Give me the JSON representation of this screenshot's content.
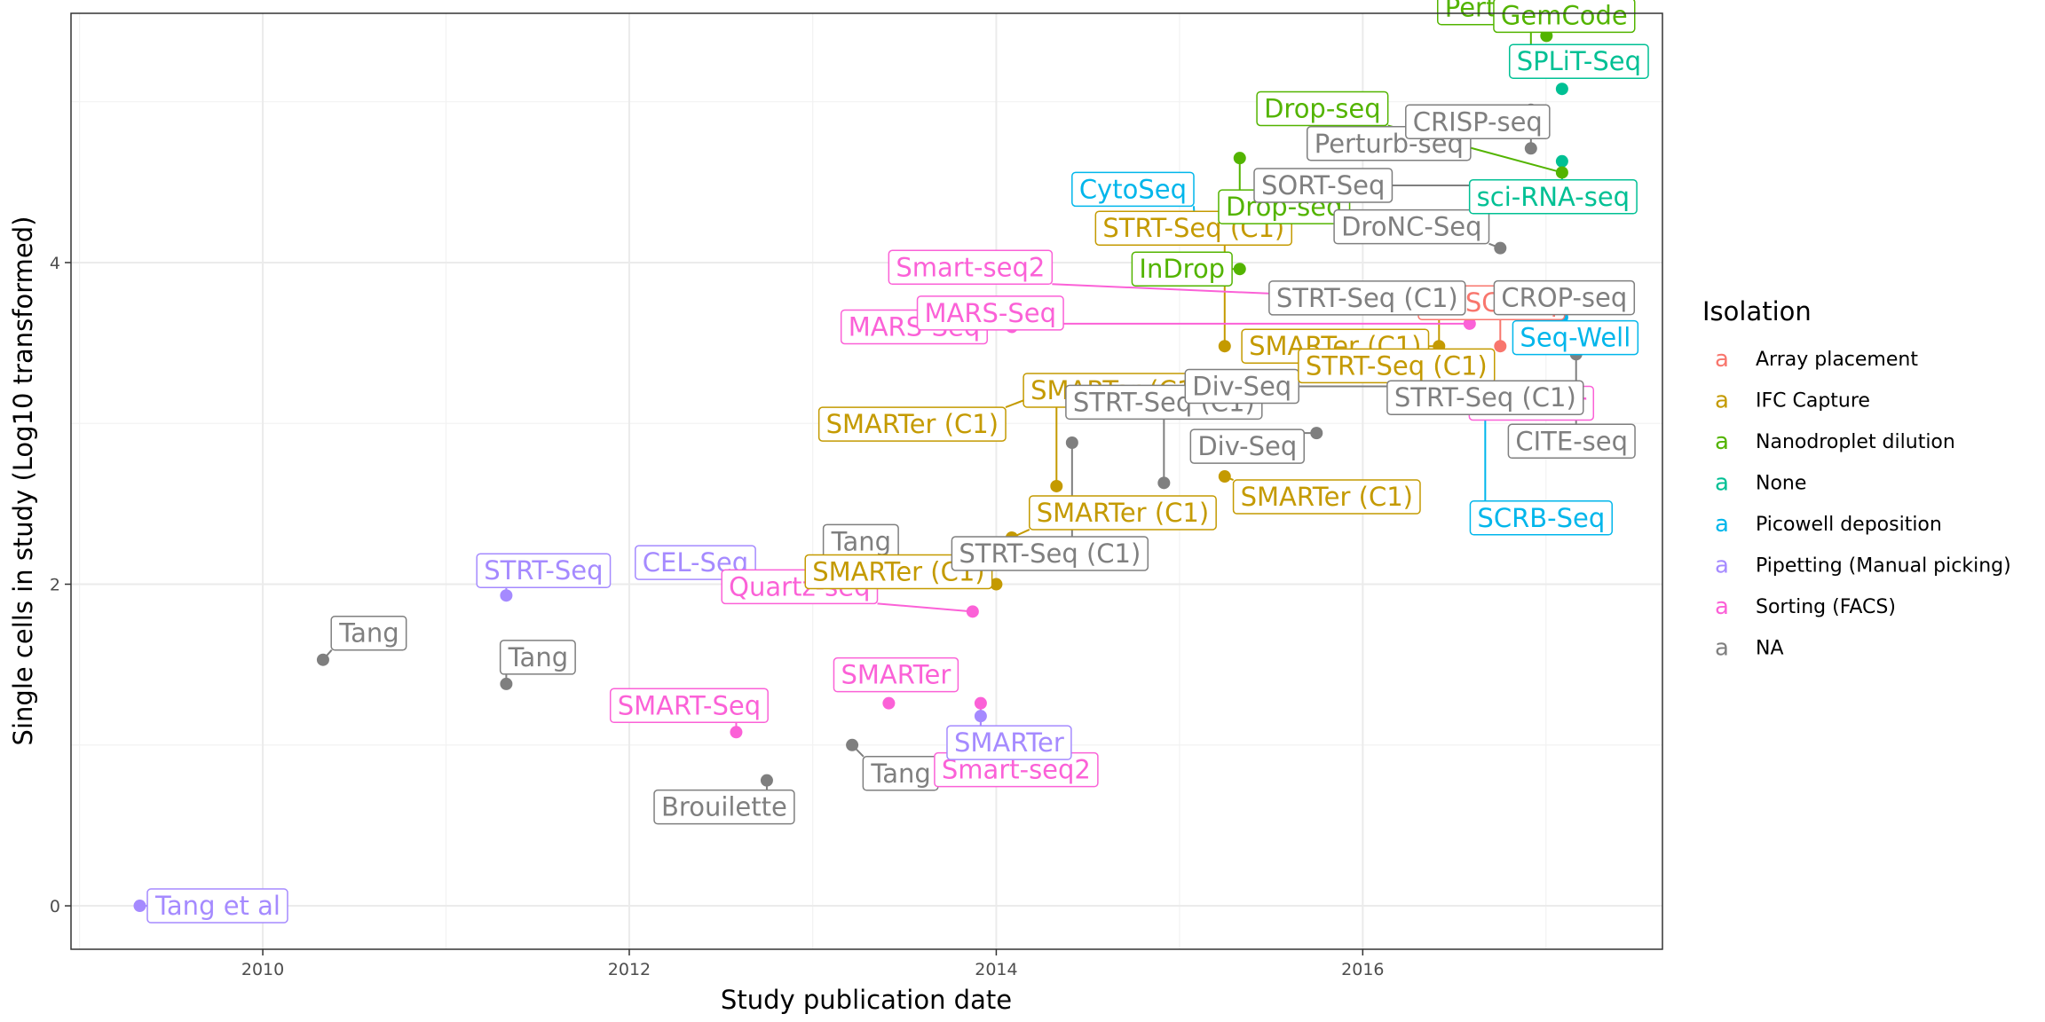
{
  "chart_data": {
    "type": "scatter",
    "xlabel": "Study publication date",
    "ylabel": "Single cells in study (Log10 transformed)",
    "xlim": [
      "2008-12-15",
      "2017-08-20"
    ],
    "ylim": [
      -0.27,
      5.55
    ],
    "x_ticks": [
      {
        "value": "2010-01-01",
        "label": "2010"
      },
      {
        "value": "2012-01-01",
        "label": "2012"
      },
      {
        "value": "2014-01-01",
        "label": "2014"
      },
      {
        "value": "2016-01-01",
        "label": "2016"
      }
    ],
    "y_ticks": [
      0,
      2,
      4
    ],
    "grid": true,
    "legend": {
      "title": "Isolation",
      "position": "right",
      "key_glyph": "a",
      "entries": [
        {
          "name": "Array placement",
          "color": "#F8766D"
        },
        {
          "name": "IFC Capture",
          "color": "#C49A00"
        },
        {
          "name": "Nanodroplet dilution",
          "color": "#53B400"
        },
        {
          "name": "None",
          "color": "#00C094"
        },
        {
          "name": "Picowell deposition",
          "color": "#00B6EB"
        },
        {
          "name": "Pipetting (Manual picking)",
          "color": "#A58AFF"
        },
        {
          "name": "Sorting (FACS)",
          "color": "#FB61D7"
        },
        {
          "name": "NA",
          "color": "#7F7F7F"
        }
      ]
    },
    "points": [
      {
        "x": "2009-05-01",
        "y": 0.0,
        "label": "Tang et al",
        "group": "Pipetting (Manual picking)"
      },
      {
        "x": "2010-05-01",
        "y": 1.53,
        "label": "Tang",
        "group": "NA"
      },
      {
        "x": "2011-05-01",
        "y": 1.38,
        "label": "Tang",
        "group": "NA"
      },
      {
        "x": "2011-05-01",
        "y": 1.93,
        "label": "STRT-Seq",
        "group": "Pipetting (Manual picking)"
      },
      {
        "x": "2012-08-01",
        "y": 1.08,
        "label": "SMART-Seq",
        "group": "Sorting (FACS)"
      },
      {
        "x": "2012-08-01",
        "y": 1.98,
        "label": "CEL-Seq",
        "group": "Pipetting (Manual picking)"
      },
      {
        "x": "2012-10-01",
        "y": 0.78,
        "label": "Brouilette",
        "group": "NA"
      },
      {
        "x": "2013-03-20",
        "y": 1.0,
        "label": "Tang",
        "group": "NA"
      },
      {
        "x": "2013-06-01",
        "y": 1.26,
        "label": "SMARTer",
        "group": "Sorting (FACS)"
      },
      {
        "x": "2013-07-01",
        "y": 2.1,
        "label": "Tang",
        "group": "NA"
      },
      {
        "x": "2013-11-15",
        "y": 1.83,
        "label": "Quartz-seq",
        "group": "Sorting (FACS)"
      },
      {
        "x": "2013-12-01",
        "y": 1.26,
        "label": "Smart-seq2",
        "group": "Sorting (FACS)"
      },
      {
        "x": "2013-12-01",
        "y": 1.18,
        "label": "SMARTer",
        "group": "Pipetting (Manual picking)"
      },
      {
        "x": "2014-01-01",
        "y": 2.0,
        "label": "SMARTer (C1)",
        "group": "IFC Capture"
      },
      {
        "x": "2014-02-01",
        "y": 2.29,
        "label": "SMARTer (C1)",
        "group": "IFC Capture"
      },
      {
        "x": "2014-02-01",
        "y": 3.6,
        "label": "MARS-Seq",
        "group": "Sorting (FACS)"
      },
      {
        "x": "2014-05-01",
        "y": 2.61,
        "label": "SMARTer (C1)",
        "group": "IFC Capture"
      },
      {
        "x": "2014-06-01",
        "y": 3.26,
        "label": "SMARTer (C1)",
        "group": "IFC Capture"
      },
      {
        "x": "2014-06-01",
        "y": 2.88,
        "label": "STRT-Seq (C1)",
        "group": "NA"
      },
      {
        "x": "2014-12-01",
        "y": 2.63,
        "label": "STRT-Seq (C1)",
        "group": "NA"
      },
      {
        "x": "2015-02-01",
        "y": 4.18,
        "label": "CytoSeq",
        "group": "Picowell deposition"
      },
      {
        "x": "2015-04-01",
        "y": 3.48,
        "label": "STRT-Seq (C1)",
        "group": "IFC Capture"
      },
      {
        "x": "2015-04-01",
        "y": 2.67,
        "label": "SMARTer (C1)",
        "group": "IFC Capture"
      },
      {
        "x": "2015-05-01",
        "y": 4.65,
        "label": "Drop-seq",
        "group": "Nanodroplet dilution"
      },
      {
        "x": "2015-05-01",
        "y": 3.96,
        "label": "InDrop",
        "group": "Nanodroplet dilution"
      },
      {
        "x": "2015-10-01",
        "y": 2.94,
        "label": "Div-Seq",
        "group": "NA"
      },
      {
        "x": "2016-03-01",
        "y": 3.23,
        "label": "Div-Seq",
        "group": "NA"
      },
      {
        "x": "2016-06-01",
        "y": 3.48,
        "label": "SMARTer (C1)",
        "group": "IFC Capture"
      },
      {
        "x": "2016-06-01",
        "y": 3.7,
        "label": "STRT-Seq (C1)",
        "group": "IFC Capture"
      },
      {
        "x": "2016-07-01",
        "y": 3.28,
        "label": "SMARTer",
        "group": "Sorting (FACS)"
      },
      {
        "x": "2016-09-01",
        "y": 3.35,
        "label": "SCRB-Seq",
        "group": "Picowell deposition"
      },
      {
        "x": "2016-09-01",
        "y": 3.16,
        "label": "STRT-Seq (C1)",
        "group": "NA"
      },
      {
        "x": "2016-10-01",
        "y": 3.48,
        "label": "MASC-Seq",
        "group": "Array placement"
      },
      {
        "x": "2016-10-01",
        "y": 4.09,
        "label": "DroNC-Seq",
        "group": "NA"
      },
      {
        "x": "2016-10-01",
        "y": 3.78,
        "label": "STRT-Seq (C1)",
        "group": "NA"
      },
      {
        "x": "2016-12-01",
        "y": 4.95,
        "label": "Perturb-seq",
        "group": "NA"
      },
      {
        "x": "2016-12-01",
        "y": 4.71,
        "label": "CRISP-seq",
        "group": "NA"
      },
      {
        "x": "2016-12-01",
        "y": 5.32,
        "label": "Perturb-seq",
        "group": "Nanodroplet dilution"
      },
      {
        "x": "2017-01-01",
        "y": 3.77,
        "label": "CROP-seq",
        "group": "NA"
      },
      {
        "x": "2017-01-01",
        "y": 5.41,
        "label": "GemCode",
        "group": "Nanodroplet dilution"
      },
      {
        "x": "2017-02-01",
        "y": 5.08,
        "label": "SPLiT-Seq",
        "group": "None"
      },
      {
        "x": "2017-02-01",
        "y": 4.63,
        "label": "sci-RNA-seq",
        "group": "None"
      },
      {
        "x": "2017-02-01",
        "y": 4.56,
        "label": "Drop-seq",
        "group": "Nanodroplet dilution"
      },
      {
        "x": "2017-02-01",
        "y": 3.66,
        "label": "Seq-Well",
        "group": "Picowell deposition"
      },
      {
        "x": "2017-03-01",
        "y": 4.48,
        "label": "SORT-Seq",
        "group": "NA"
      },
      {
        "x": "2017-03-01",
        "y": 3.43,
        "label": "CITE-seq",
        "group": "NA"
      },
      {
        "x": "2016-09-01",
        "y": 3.75,
        "label": "Smart-seq2",
        "group": "Sorting (FACS)"
      },
      {
        "x": "2016-08-01",
        "y": 3.62,
        "label": "MARS-Seq",
        "group": "Sorting (FACS)"
      }
    ]
  }
}
